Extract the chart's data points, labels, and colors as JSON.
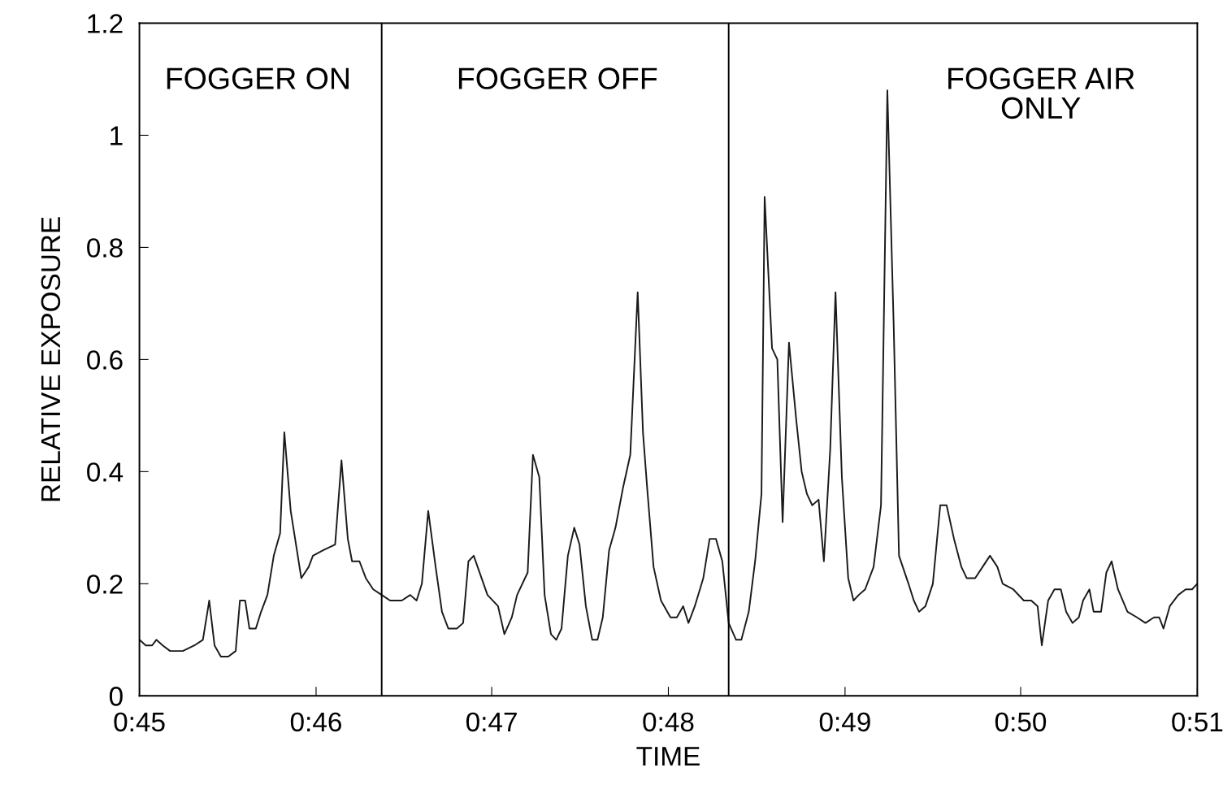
{
  "chart_data": {
    "type": "line",
    "xlabel": "TIME",
    "ylabel": "RELATIVE EXPOSURE",
    "xlim": [
      0.75,
      0.85
    ],
    "ylim": [
      0,
      1.2
    ],
    "xticks": [
      {
        "value": 0.75,
        "label": "0:45"
      },
      {
        "value": 0.7667,
        "label": "0:46"
      },
      {
        "value": 0.7833,
        "label": "0:47"
      },
      {
        "value": 0.8,
        "label": "0:48"
      },
      {
        "value": 0.8167,
        "label": "0:49"
      },
      {
        "value": 0.8333,
        "label": "0:50"
      },
      {
        "value": 0.85,
        "label": "0:51"
      }
    ],
    "yticks": [
      0,
      0.2,
      0.4,
      0.6,
      0.8,
      1,
      1.2
    ],
    "grid": false,
    "marker": "none",
    "line_style": "solid",
    "ref_lines": [
      {
        "axis": "x",
        "value": 0.7729,
        "label": null,
        "color": "#000000",
        "line_style": "solid"
      },
      {
        "axis": "x",
        "value": 0.8057,
        "label": null,
        "color": "#000000",
        "line_style": "solid"
      }
    ],
    "annotations": [
      "FOGGER ON",
      "FOGGER OFF",
      "FOGGER AIR\nONLY"
    ],
    "series": [
      {
        "color": "#1a1a1a",
        "x": [
          0.75,
          0.7506,
          0.7512,
          0.7516,
          0.7522,
          0.7529,
          0.7541,
          0.7552,
          0.756,
          0.7566,
          0.7571,
          0.7577,
          0.7584,
          0.7591,
          0.7595,
          0.76,
          0.7604,
          0.761,
          0.7615,
          0.7621,
          0.7627,
          0.7633,
          0.7637,
          0.7643,
          0.7653,
          0.766,
          0.7664,
          0.7674,
          0.7685,
          0.7691,
          0.7697,
          0.7701,
          0.7708,
          0.7714,
          0.7721,
          0.7729,
          0.7737,
          0.7748,
          0.7756,
          0.7762,
          0.7767,
          0.7773,
          0.778,
          0.7786,
          0.7792,
          0.78,
          0.7806,
          0.7811,
          0.7816,
          0.7829,
          0.7839,
          0.7845,
          0.7852,
          0.7857,
          0.7867,
          0.7872,
          0.7878,
          0.7883,
          0.7889,
          0.7894,
          0.7899,
          0.7905,
          0.7911,
          0.7916,
          0.7922,
          0.7928,
          0.7933,
          0.7938,
          0.7944,
          0.795,
          0.7957,
          0.7964,
          0.7971,
          0.7976,
          0.798,
          0.7986,
          0.7993,
          0.8002,
          0.8008,
          0.8014,
          0.8019,
          0.8025,
          0.8033,
          0.8039,
          0.8045,
          0.8051,
          0.8057,
          0.8064,
          0.8069,
          0.8076,
          0.8082,
          0.8088,
          0.8091,
          0.8098,
          0.8103,
          0.8108,
          0.8114,
          0.8121,
          0.8126,
          0.8131,
          0.8136,
          0.8142,
          0.8147,
          0.8153,
          0.8158,
          0.8164,
          0.817,
          0.8175,
          0.818,
          0.8186,
          0.8194,
          0.8201,
          0.8207,
          0.8213,
          0.8218,
          0.8227,
          0.8232,
          0.8237,
          0.8243,
          0.825,
          0.8257,
          0.8263,
          0.827,
          0.8277,
          0.8282,
          0.829,
          0.8297,
          0.8304,
          0.8311,
          0.8316,
          0.8326,
          0.8336,
          0.8343,
          0.8349,
          0.8353,
          0.8359,
          0.8365,
          0.8371,
          0.8376,
          0.8382,
          0.8388,
          0.8392,
          0.8398,
          0.8402,
          0.8409,
          0.8414,
          0.8419,
          0.8425,
          0.8434,
          0.8443,
          0.8451,
          0.8459,
          0.8464,
          0.8468,
          0.8474,
          0.8482,
          0.8489,
          0.8495,
          0.85
        ],
        "values": [
          0.1,
          0.09,
          0.09,
          0.1,
          0.09,
          0.08,
          0.08,
          0.09,
          0.1,
          0.17,
          0.09,
          0.07,
          0.07,
          0.08,
          0.17,
          0.17,
          0.12,
          0.12,
          0.15,
          0.18,
          0.25,
          0.29,
          0.47,
          0.33,
          0.21,
          0.23,
          0.25,
          0.26,
          0.27,
          0.42,
          0.28,
          0.24,
          0.24,
          0.21,
          0.19,
          0.18,
          0.17,
          0.17,
          0.18,
          0.17,
          0.2,
          0.33,
          0.23,
          0.15,
          0.12,
          0.12,
          0.13,
          0.24,
          0.25,
          0.18,
          0.16,
          0.11,
          0.14,
          0.18,
          0.22,
          0.43,
          0.39,
          0.18,
          0.11,
          0.1,
          0.12,
          0.25,
          0.3,
          0.27,
          0.16,
          0.1,
          0.1,
          0.14,
          0.26,
          0.3,
          0.37,
          0.43,
          0.72,
          0.47,
          0.37,
          0.23,
          0.17,
          0.14,
          0.14,
          0.16,
          0.13,
          0.16,
          0.21,
          0.28,
          0.28,
          0.24,
          0.13,
          0.1,
          0.1,
          0.15,
          0.24,
          0.36,
          0.89,
          0.62,
          0.6,
          0.31,
          0.63,
          0.49,
          0.4,
          0.36,
          0.34,
          0.35,
          0.24,
          0.44,
          0.72,
          0.39,
          0.21,
          0.17,
          0.18,
          0.19,
          0.23,
          0.34,
          1.08,
          0.66,
          0.25,
          0.2,
          0.17,
          0.15,
          0.16,
          0.2,
          0.34,
          0.34,
          0.28,
          0.23,
          0.21,
          0.21,
          0.23,
          0.25,
          0.23,
          0.2,
          0.19,
          0.17,
          0.17,
          0.16,
          0.09,
          0.17,
          0.19,
          0.19,
          0.15,
          0.13,
          0.14,
          0.17,
          0.19,
          0.15,
          0.15,
          0.22,
          0.24,
          0.19,
          0.15,
          0.14,
          0.13,
          0.14,
          0.14,
          0.12,
          0.16,
          0.18,
          0.19,
          0.19,
          0.2
        ]
      }
    ]
  }
}
